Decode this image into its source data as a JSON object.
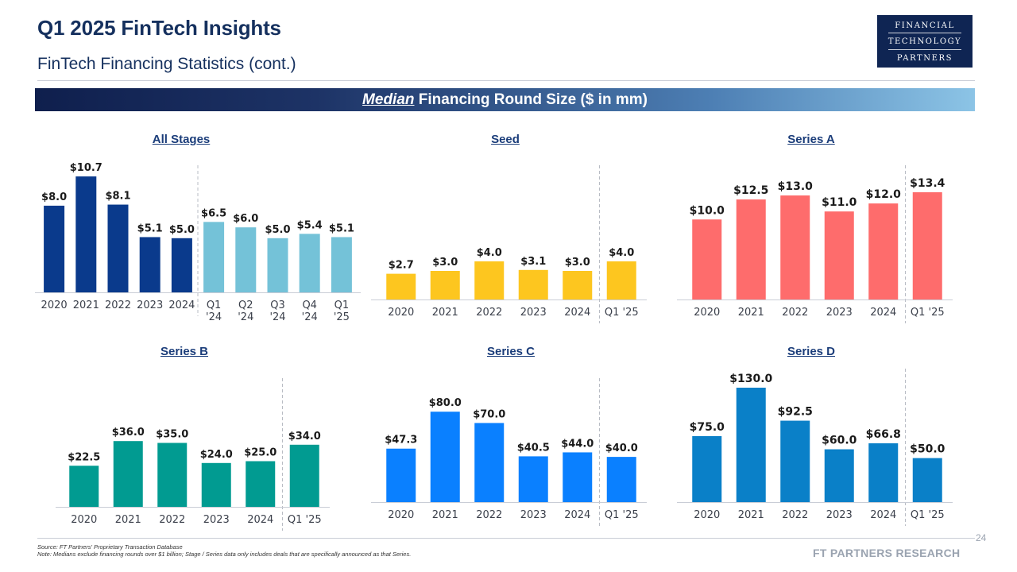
{
  "header": {
    "title": "Q1 2025 FinTech Insights",
    "subtitle": "FinTech Financing Statistics (cont.)"
  },
  "logo": {
    "line1": "FINANCIAL",
    "line2": "TECHNOLOGY",
    "line3": "PARTNERS"
  },
  "banner": {
    "emphasis": "Median",
    "rest": " Financing Round Size ($ in mm)"
  },
  "footer": {
    "source": "Source: FT Partners' Proprietary Transaction Database",
    "note": "Note: Medians exclude financing rounds over $1 billion; Stage / Series data only includes deals that are specifically announced as that Series.",
    "page": "24",
    "brand": "FT PARTNERS RESEARCH"
  },
  "chart_data": [
    {
      "type": "bar",
      "title": "All Stages",
      "categories": [
        "2020",
        "2021",
        "2022",
        "2023",
        "2024",
        "Q1\n'24",
        "Q2\n'24",
        "Q3\n'24",
        "Q4\n'24",
        "Q1\n'25"
      ],
      "values": [
        8.0,
        10.7,
        8.1,
        5.1,
        5.0,
        6.5,
        6.0,
        5.0,
        5.4,
        5.1
      ],
      "labels": [
        "$8.0",
        "$10.7",
        "$8.1",
        "$5.1",
        "$5.0",
        "$6.5",
        "$6.0",
        "$5.0",
        "$5.4",
        "$5.1"
      ],
      "colors": [
        "#0a3a8c",
        "#0a3a8c",
        "#0a3a8c",
        "#0a3a8c",
        "#0a3a8c",
        "#74c2d8",
        "#74c2d8",
        "#74c2d8",
        "#74c2d8",
        "#74c2d8"
      ],
      "divider_after": 4
    },
    {
      "type": "bar",
      "title": "Seed",
      "categories": [
        "2020",
        "2021",
        "2022",
        "2023",
        "2024",
        "Q1 '25"
      ],
      "values": [
        2.7,
        3.0,
        4.0,
        3.1,
        3.0,
        4.0
      ],
      "labels": [
        "$2.7",
        "$3.0",
        "$4.0",
        "$3.1",
        "$3.0",
        "$4.0"
      ],
      "color": "#fdc61f",
      "divider_after": 4
    },
    {
      "type": "bar",
      "title": "Series A",
      "categories": [
        "2020",
        "2021",
        "2022",
        "2023",
        "2024",
        "Q1 '25"
      ],
      "values": [
        10.0,
        12.5,
        13.0,
        11.0,
        12.0,
        13.4
      ],
      "labels": [
        "$10.0",
        "$12.5",
        "$13.0",
        "$11.0",
        "$12.0",
        "$13.4"
      ],
      "color": "#fe6c6c",
      "divider_after": 4
    },
    {
      "type": "bar",
      "title": "Series B",
      "categories": [
        "2020",
        "2021",
        "2022",
        "2023",
        "2024",
        "Q1 '25"
      ],
      "values": [
        22.5,
        36.0,
        35.0,
        24.0,
        25.0,
        34.0
      ],
      "labels": [
        "$22.5",
        "$36.0",
        "$35.0",
        "$24.0",
        "$25.0",
        "$34.0"
      ],
      "color": "#019b91",
      "divider_after": 4
    },
    {
      "type": "bar",
      "title": "Series C",
      "categories": [
        "2020",
        "2021",
        "2022",
        "2023",
        "2024",
        "Q1 '25"
      ],
      "values": [
        47.3,
        80.0,
        70.0,
        40.5,
        44.0,
        40.0
      ],
      "labels": [
        "$47.3",
        "$80.0",
        "$70.0",
        "$40.5",
        "$44.0",
        "$40.0"
      ],
      "color": "#0a80ff",
      "divider_after": 4
    },
    {
      "type": "bar",
      "title": "Series D",
      "categories": [
        "2020",
        "2021",
        "2022",
        "2023",
        "2024",
        "Q1 '25"
      ],
      "values": [
        75.0,
        130.0,
        92.5,
        60.0,
        66.8,
        50.0
      ],
      "labels": [
        "$75.0",
        "$130.0",
        "$92.5",
        "$60.0",
        "$66.8",
        "$50.0"
      ],
      "color": "#0a80c8",
      "divider_after": 4
    }
  ]
}
